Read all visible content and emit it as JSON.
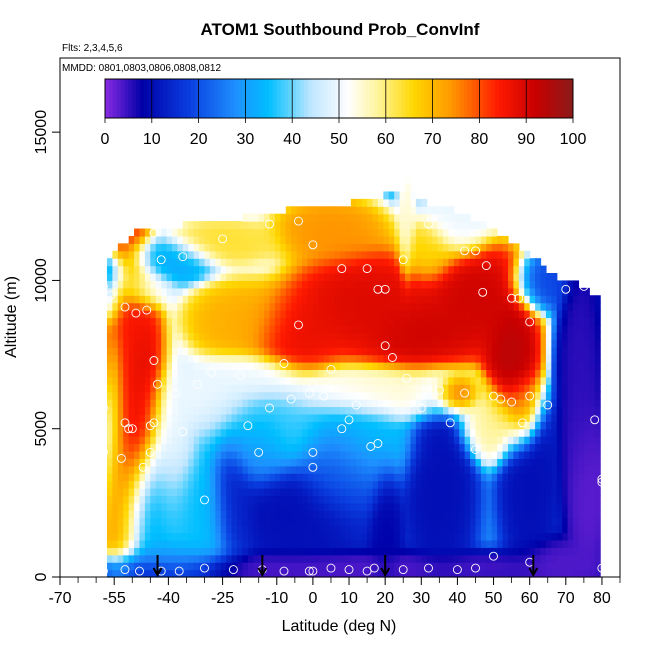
{
  "chart_data": {
    "type": "heatmap",
    "title": "ATOM1 Southbound Prob_ConvInf",
    "notes": [
      "Flts: 2,3,4,5,6",
      "MMDD: 0801,0803,0806,0808,0812"
    ],
    "xlabel": "Latitude (deg N)",
    "ylabel": "Altitude (m)",
    "xlim": [
      -70,
      85
    ],
    "ylim": [
      0,
      17500
    ],
    "x_ticks": [
      -70,
      -55,
      -40,
      -25,
      -10,
      0,
      10,
      20,
      30,
      40,
      50,
      60,
      70,
      80
    ],
    "x_tick_labels": [
      "-70",
      "-55",
      "-40",
      "-25",
      "-10",
      "0",
      "10",
      "20",
      "30",
      "40",
      "50",
      "60",
      "70",
      "80"
    ],
    "x_minor_ticks": [
      -65,
      -60,
      -50,
      -45,
      -35,
      -30,
      -20,
      -15,
      -5,
      5,
      15,
      25,
      35,
      45,
      55,
      65,
      75,
      85
    ],
    "y_ticks": [
      0,
      5000,
      10000,
      15000
    ],
    "y_tick_labels": [
      "0",
      "5000",
      "10000",
      "15000"
    ],
    "colorbar": {
      "range": [
        0,
        100
      ],
      "ticks": [
        0,
        10,
        20,
        30,
        40,
        50,
        60,
        70,
        80,
        90,
        100
      ],
      "tick_labels": [
        "0",
        "10",
        "20",
        "30",
        "40",
        "50",
        "60",
        "70",
        "80",
        "90",
        "100"
      ],
      "stops": [
        {
          "value": 0,
          "color": "#8a2be2"
        },
        {
          "value": 8,
          "color": "#0000a8"
        },
        {
          "value": 18,
          "color": "#0a3ee0"
        },
        {
          "value": 28,
          "color": "#1e90ff"
        },
        {
          "value": 35,
          "color": "#00bfff"
        },
        {
          "value": 44,
          "color": "#bfe6ff"
        },
        {
          "value": 52,
          "color": "#ffffff"
        },
        {
          "value": 58,
          "color": "#fff5a0"
        },
        {
          "value": 66,
          "color": "#ffd700"
        },
        {
          "value": 74,
          "color": "#ff9800"
        },
        {
          "value": 84,
          "color": "#ff1a00"
        },
        {
          "value": 92,
          "color": "#c80000"
        },
        {
          "value": 100,
          "color": "#8b1a1a"
        }
      ]
    },
    "grid": false,
    "legend": "none",
    "cell_size": {
      "lat": 1.5,
      "alt": 250
    },
    "top_profile": [
      [
        -57,
        10500
      ],
      [
        -55,
        10800
      ],
      [
        -52,
        11200
      ],
      [
        -48,
        11600
      ],
      [
        -40,
        11700
      ],
      [
        -32,
        11800
      ],
      [
        -25,
        11900
      ],
      [
        -15,
        12100
      ],
      [
        -5,
        12300
      ],
      [
        3,
        12300
      ],
      [
        10,
        12500
      ],
      [
        18,
        12700
      ],
      [
        24,
        12900
      ],
      [
        26,
        13400
      ],
      [
        28,
        12800
      ],
      [
        32,
        12500
      ],
      [
        40,
        12200
      ],
      [
        48,
        11800
      ],
      [
        55,
        11200
      ],
      [
        60,
        10800
      ],
      [
        65,
        10200
      ],
      [
        68,
        10000
      ],
      [
        71,
        9900
      ],
      [
        76,
        9600
      ],
      [
        79,
        9300
      ]
    ],
    "features": [
      {
        "lat": -59,
        "alt": 7000,
        "value": 95,
        "slat": 3,
        "salt": 1500
      },
      {
        "lat": -57,
        "alt": 5500,
        "value": 45,
        "slat": 4,
        "salt": 2200
      },
      {
        "lat": -51,
        "alt": 8000,
        "value": 86,
        "slat": 5,
        "salt": 3200
      },
      {
        "lat": -50,
        "alt": 5000,
        "value": 88,
        "slat": 5,
        "salt": 2000
      },
      {
        "lat": -46,
        "alt": 6600,
        "value": 90,
        "slat": 4,
        "salt": 1500
      },
      {
        "lat": -54,
        "alt": 2800,
        "value": 75,
        "slat": 5,
        "salt": 1800
      },
      {
        "lat": -48,
        "alt": 9800,
        "value": 50,
        "slat": 6,
        "salt": 500
      },
      {
        "lat": -40,
        "alt": 4500,
        "value": 50,
        "slat": 5,
        "salt": 2000
      },
      {
        "lat": -30,
        "alt": 6000,
        "value": 50,
        "slat": 10,
        "salt": 800
      },
      {
        "lat": -20,
        "alt": 8600,
        "value": 72,
        "slat": 10,
        "salt": 900
      },
      {
        "lat": -18,
        "alt": 6800,
        "value": 50,
        "slat": 10,
        "salt": 500
      },
      {
        "lat": -5,
        "alt": 8200,
        "value": 88,
        "slat": 8,
        "salt": 900
      },
      {
        "lat": 15,
        "alt": 9200,
        "value": 90,
        "slat": 14,
        "salt": 1200
      },
      {
        "lat": 30,
        "alt": 8200,
        "value": 92,
        "slat": 10,
        "salt": 800
      },
      {
        "lat": 45,
        "alt": 9400,
        "value": 92,
        "slat": 10,
        "salt": 1200
      },
      {
        "lat": 55,
        "alt": 7300,
        "value": 95,
        "slat": 5,
        "salt": 1500
      },
      {
        "lat": 58,
        "alt": 5600,
        "value": 78,
        "slat": 3,
        "salt": 800
      },
      {
        "lat": 5,
        "alt": 11700,
        "value": 75,
        "slat": 10,
        "salt": 700
      },
      {
        "lat": -25,
        "alt": 11300,
        "value": 64,
        "slat": 10,
        "salt": 500
      },
      {
        "lat": -40,
        "alt": 10700,
        "value": 32,
        "slat": 8,
        "salt": 500
      },
      {
        "lat": 40,
        "alt": 12000,
        "value": 50,
        "slat": 6,
        "salt": 800
      },
      {
        "lat": 32,
        "alt": 11000,
        "value": 66,
        "slat": 5,
        "salt": 700
      },
      {
        "lat": 26,
        "alt": 11800,
        "value": 55,
        "slat": 1.5,
        "salt": 1200
      },
      {
        "lat": 20,
        "alt": 6200,
        "value": 55,
        "slat": 20,
        "salt": 600
      },
      {
        "lat": -10,
        "alt": 5000,
        "value": 38,
        "slat": 15,
        "salt": 1000
      },
      {
        "lat": 50,
        "alt": 5200,
        "value": 58,
        "slat": 6,
        "salt": 800
      },
      {
        "lat": 12,
        "alt": 4600,
        "value": 36,
        "slat": 10,
        "salt": 1000
      },
      {
        "lat": 10,
        "alt": 3600,
        "value": 22,
        "slat": 8,
        "salt": 1200
      },
      {
        "lat": -5,
        "alt": 2200,
        "value": 10,
        "slat": 15,
        "salt": 1200
      },
      {
        "lat": 20,
        "alt": 1500,
        "value": 8,
        "slat": 3,
        "salt": 1500
      },
      {
        "lat": 35,
        "alt": 3000,
        "value": 10,
        "slat": 6,
        "salt": 2000
      },
      {
        "lat": 60,
        "alt": 3200,
        "value": 10,
        "slat": 5,
        "salt": 1800
      },
      {
        "lat": 74,
        "alt": 6500,
        "value": 5,
        "slat": 4,
        "salt": 3000
      },
      {
        "lat": -32,
        "alt": 2000,
        "value": 36,
        "slat": 8,
        "salt": 1500
      },
      {
        "lat": -38,
        "alt": 600,
        "value": 30,
        "slat": 10,
        "salt": 500
      },
      {
        "lat": 0,
        "alt": 300,
        "value": 3,
        "slat": 50,
        "salt": 400
      },
      {
        "lat": 68,
        "alt": 400,
        "value": 3,
        "slat": 8,
        "salt": 600
      },
      {
        "lat": -62,
        "alt": 3500,
        "value": 10,
        "slat": 3,
        "salt": 1500
      },
      {
        "lat": 76,
        "alt": 3000,
        "value": 2,
        "slat": 4,
        "salt": 2000
      },
      {
        "lat": -58,
        "alt": 9400,
        "value": 40,
        "slat": 4,
        "salt": 600
      },
      {
        "lat": -58,
        "alt": 10200,
        "value": 22,
        "slat": 5,
        "salt": 500
      },
      {
        "lat": 63,
        "alt": 9900,
        "value": 18,
        "slat": 5,
        "salt": 600
      },
      {
        "lat": -45,
        "alt": 2500,
        "value": 32,
        "slat": 6,
        "salt": 1500
      },
      {
        "lat": 40,
        "alt": 6200,
        "value": 84,
        "slat": 4,
        "salt": 400
      },
      {
        "lat": -15,
        "alt": 4300,
        "value": 28,
        "slat": 6,
        "salt": 900
      },
      {
        "lat": 5,
        "alt": 3800,
        "value": 20,
        "slat": 6,
        "salt": 1000
      },
      {
        "lat": -22,
        "alt": 2600,
        "value": 12,
        "slat": 4,
        "salt": 1500
      }
    ],
    "background_value": 30,
    "points": [
      [
        -60,
        10200
      ],
      [
        -59,
        10050
      ],
      [
        -58,
        9800
      ],
      [
        -56,
        9500
      ],
      [
        -52,
        9100
      ],
      [
        -49,
        8900
      ],
      [
        -46,
        9000
      ],
      [
        -44,
        11600
      ],
      [
        -42,
        10700
      ],
      [
        -36,
        10800
      ],
      [
        -25,
        11400
      ],
      [
        -12,
        11900
      ],
      [
        -4,
        12000
      ],
      [
        0,
        11200
      ],
      [
        -4,
        8500
      ],
      [
        8,
        10400
      ],
      [
        15,
        10400
      ],
      [
        18,
        9700
      ],
      [
        20,
        9700
      ],
      [
        25,
        10700
      ],
      [
        32,
        11900
      ],
      [
        42,
        11000
      ],
      [
        45,
        11000
      ],
      [
        48,
        10500
      ],
      [
        47,
        9600
      ],
      [
        55,
        9400
      ],
      [
        57,
        9400
      ],
      [
        60,
        8600
      ],
      [
        70,
        9700
      ],
      [
        75,
        9800
      ],
      [
        -62,
        5800
      ],
      [
        -61,
        5500
      ],
      [
        -58,
        5700
      ],
      [
        -52,
        5200
      ],
      [
        -50,
        5000
      ],
      [
        -45,
        5100
      ],
      [
        -44,
        5200
      ],
      [
        -43,
        6500
      ],
      [
        -44,
        7300
      ],
      [
        -38,
        6200
      ],
      [
        -36,
        4900
      ],
      [
        -32,
        6500
      ],
      [
        -28,
        6900
      ],
      [
        -20,
        6800
      ],
      [
        -18,
        5100
      ],
      [
        -12,
        5700
      ],
      [
        -8,
        7200
      ],
      [
        -6,
        6000
      ],
      [
        -1,
        6200
      ],
      [
        0,
        6500
      ],
      [
        3,
        6100
      ],
      [
        5,
        7000
      ],
      [
        8,
        5000
      ],
      [
        10,
        5300
      ],
      [
        12,
        5800
      ],
      [
        16,
        4400
      ],
      [
        18,
        4500
      ],
      [
        20,
        7800
      ],
      [
        22,
        7400
      ],
      [
        26,
        6700
      ],
      [
        30,
        5700
      ],
      [
        35,
        6300
      ],
      [
        38,
        5200
      ],
      [
        42,
        6200
      ],
      [
        45,
        4300
      ],
      [
        50,
        6100
      ],
      [
        52,
        6000
      ],
      [
        55,
        5900
      ],
      [
        58,
        5200
      ],
      [
        60,
        6100
      ],
      [
        65,
        5800
      ],
      [
        78,
        5300
      ],
      [
        -58,
        4200
      ],
      [
        -53,
        4000
      ],
      [
        -51,
        5000
      ],
      [
        -47,
        3700
      ],
      [
        -45,
        4200
      ],
      [
        -30,
        2600
      ],
      [
        -15,
        4200
      ],
      [
        0,
        4200
      ],
      [
        0,
        3700
      ],
      [
        80,
        3300
      ],
      [
        80,
        3200
      ],
      [
        -65,
        300
      ],
      [
        -58,
        200
      ],
      [
        -52,
        250
      ],
      [
        -48,
        200
      ],
      [
        -42,
        200
      ],
      [
        -37,
        200
      ],
      [
        -30,
        300
      ],
      [
        -22,
        250
      ],
      [
        -14,
        250
      ],
      [
        -8,
        200
      ],
      [
        -1,
        200
      ],
      [
        0,
        200
      ],
      [
        5,
        300
      ],
      [
        10,
        250
      ],
      [
        15,
        200
      ],
      [
        17,
        300
      ],
      [
        25,
        250
      ],
      [
        32,
        300
      ],
      [
        40,
        250
      ],
      [
        45,
        300
      ],
      [
        50,
        700
      ],
      [
        60,
        500
      ],
      [
        80,
        300
      ]
    ],
    "arrows": [
      -43,
      -14,
      20,
      61
    ]
  }
}
